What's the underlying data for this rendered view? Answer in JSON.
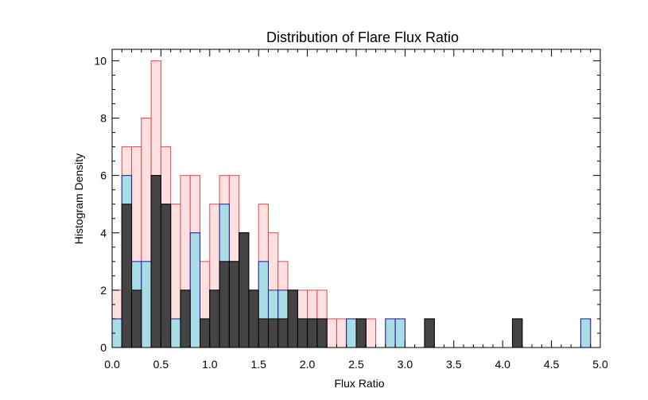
{
  "chart_data": {
    "type": "bar",
    "title": "Distribution of Flare Flux Ratio",
    "xlabel": "Flux Ratio",
    "ylabel": "Histogram Density",
    "xlim": [
      0,
      5.0
    ],
    "ylim": [
      0,
      10.4
    ],
    "xticks": [
      "0.0",
      "0.5",
      "1.0",
      "1.5",
      "2.0",
      "2.5",
      "3.0",
      "3.5",
      "4.0",
      "4.5",
      "5.0"
    ],
    "yticks": [
      "0",
      "2",
      "4",
      "6",
      "8",
      "10"
    ],
    "bin_width": 0.1,
    "bin_starts": [
      0.0,
      0.1,
      0.2,
      0.3,
      0.4,
      0.5,
      0.6,
      0.7,
      0.8,
      0.9,
      1.0,
      1.1,
      1.2,
      1.3,
      1.4,
      1.5,
      1.6,
      1.7,
      1.8,
      1.9,
      2.0,
      2.1,
      2.2,
      2.3,
      2.4,
      2.5,
      2.6,
      2.7,
      2.8,
      2.9,
      3.0,
      3.1,
      3.2,
      3.3,
      3.4,
      3.5,
      3.6,
      3.7,
      3.8,
      3.9,
      4.0,
      4.1,
      4.2,
      4.3,
      4.4,
      4.5,
      4.6,
      4.7,
      4.8,
      4.9
    ],
    "series": [
      {
        "values": [
          2,
          7,
          7,
          8,
          10,
          7,
          5,
          6,
          6,
          3,
          5,
          6,
          6,
          4,
          2,
          5,
          4,
          3,
          2,
          2,
          2,
          2,
          1,
          1,
          1,
          1,
          1,
          0,
          1,
          1,
          0,
          0,
          1,
          0,
          0,
          0,
          0,
          0,
          0,
          0,
          0,
          1,
          0,
          0,
          0,
          0,
          0,
          0,
          1,
          0
        ],
        "fill": "#ffe0e0",
        "stroke": "#d05050"
      },
      {
        "values": [
          1,
          6,
          3,
          3,
          6,
          5,
          1,
          2,
          4,
          1,
          2,
          5,
          3,
          4,
          2,
          3,
          2,
          2,
          2,
          1,
          1,
          1,
          0,
          0,
          1,
          1,
          0,
          0,
          1,
          1,
          0,
          0,
          1,
          0,
          0,
          0,
          0,
          0,
          0,
          0,
          0,
          1,
          0,
          0,
          0,
          0,
          0,
          0,
          1,
          0
        ],
        "fill": "#a8dce6",
        "stroke": "#1a1a8c"
      },
      {
        "values": [
          0,
          5,
          2,
          0,
          6,
          5,
          0,
          2,
          0,
          1,
          2,
          3,
          3,
          4,
          2,
          1,
          1,
          1,
          2,
          1,
          1,
          1,
          0,
          0,
          0,
          1,
          0,
          0,
          0,
          0,
          0,
          0,
          1,
          0,
          0,
          0,
          0,
          0,
          0,
          0,
          0,
          1,
          0,
          0,
          0,
          0,
          0,
          0,
          0,
          0
        ],
        "fill": "#444444",
        "stroke": "#000000"
      }
    ]
  }
}
